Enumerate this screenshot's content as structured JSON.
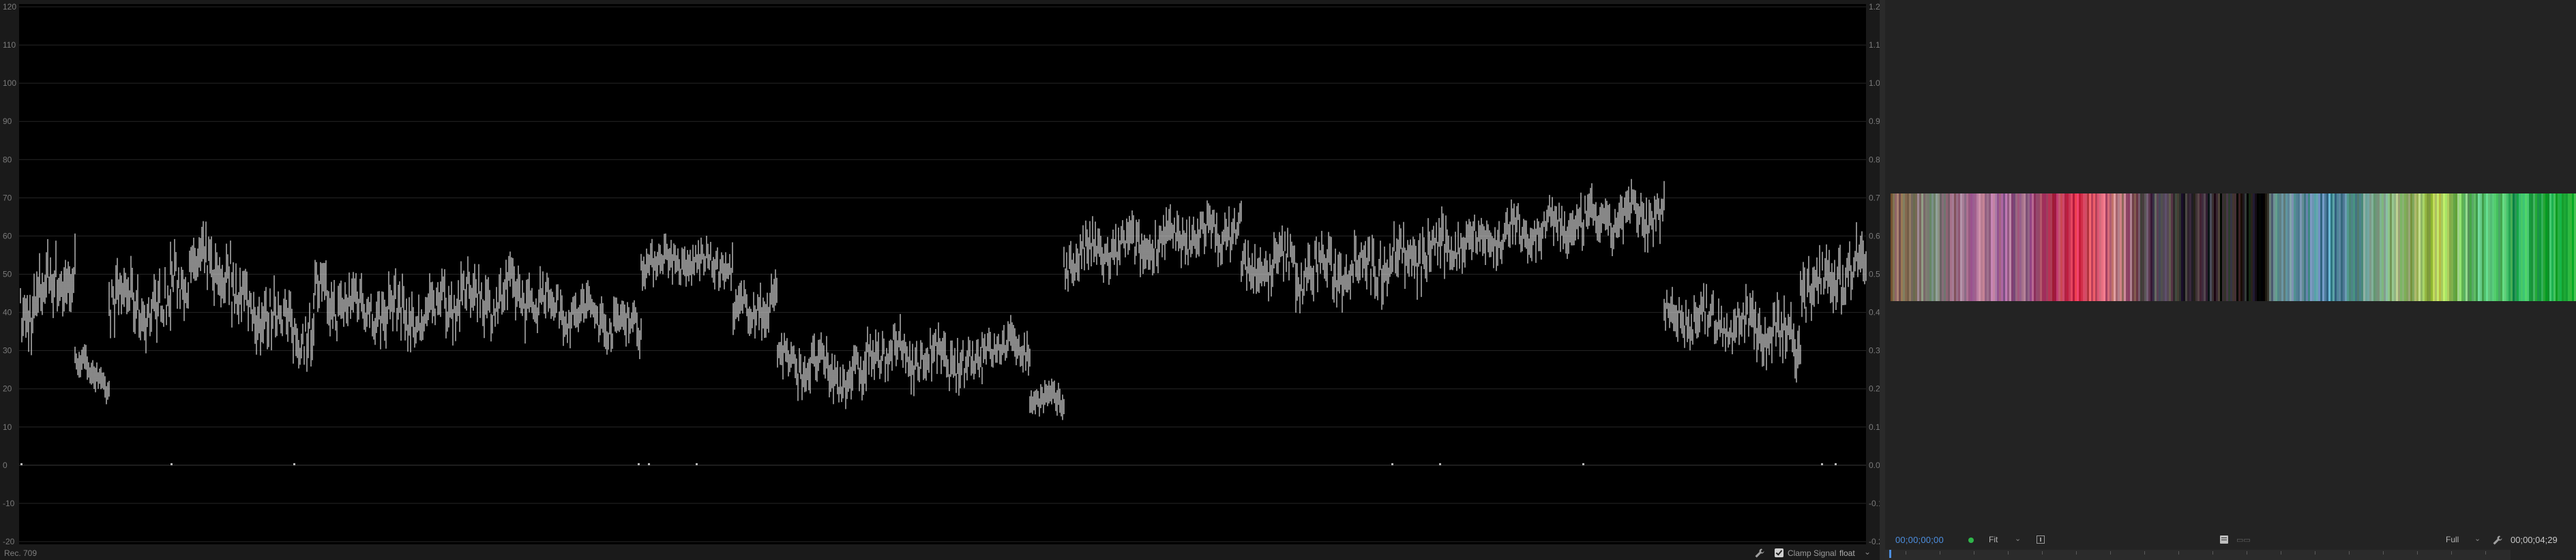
{
  "scope": {
    "left_axis_labels": [
      "120",
      "110",
      "100",
      "90",
      "80",
      "70",
      "60",
      "50",
      "40",
      "30",
      "20",
      "10",
      "0",
      "-10",
      "-20"
    ],
    "right_axis_labels": [
      "1.2",
      "1.1",
      "1.0",
      "0.9",
      "0.8",
      "0.7",
      "0.6",
      "0.5",
      "0.4",
      "0.3",
      "0.2",
      "0.1",
      "0.0",
      "-0.1",
      "-0.2"
    ],
    "left_axis_range": [
      -20,
      120
    ],
    "trace_color": "#d6d6d6",
    "background_color": "#000000",
    "grid_color": "#262626",
    "colorspace_label": "Rec. 709",
    "clamp_signal_checked": true,
    "clamp_signal_label": "Clamp Signal",
    "precision_value": "float",
    "menu_icon": "chevron-down-icon",
    "settings_icon": "wrench-icon"
  },
  "monitor": {
    "timecode_current": "00;00;00;00",
    "timecode_duration": "00;00;04;29",
    "zoom_value": "Fit",
    "quality_value": "Full",
    "compare_label": "▭▭",
    "accent_color": "#4d8fe0",
    "status_color": "#2fb54a",
    "icons": [
      "safe-margin-icon",
      "settings-icon",
      "compare-icon",
      "wrench-icon"
    ]
  }
}
